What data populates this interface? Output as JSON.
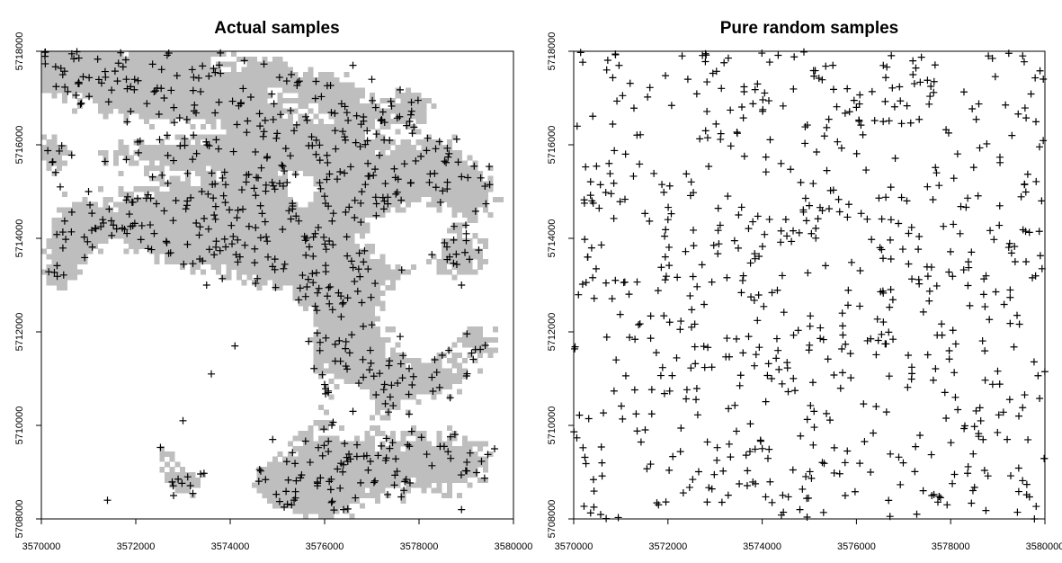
{
  "chart_data": [
    {
      "type": "scatter",
      "title": "Actual samples",
      "xlabel": "",
      "ylabel": "",
      "xlim": [
        3570000,
        3580000
      ],
      "ylim": [
        5708000,
        5718000
      ],
      "x_ticks": [
        "3570000",
        "3572000",
        "3574000",
        "3576000",
        "3578000",
        "3580000"
      ],
      "y_ticks": [
        "5708000",
        "5710000",
        "5712000",
        "5714000",
        "5716000",
        "5718000"
      ],
      "marker": "+",
      "background": "grey raster mask (sampled landscape)",
      "grid": false,
      "n_points_approx": 700,
      "sample_seed": 7,
      "points": [
        [
          3571400,
          5708400
        ],
        [
          3572800,
          5708500
        ],
        [
          3575300,
          5708300
        ],
        [
          3576400,
          5708200
        ],
        [
          3578900,
          5708200
        ],
        [
          3573100,
          5708900
        ],
        [
          3577700,
          5708800
        ],
        [
          3579600,
          5709500
        ],
        [
          3574900,
          5709700
        ],
        [
          3573000,
          5710100
        ],
        [
          3576600,
          5710300
        ],
        [
          3573600,
          5711100
        ],
        [
          3574100,
          5711700
        ],
        [
          3575900,
          5711600
        ],
        [
          3577600,
          5711900
        ],
        [
          3576100,
          5712600
        ],
        [
          3573500,
          5713000
        ],
        [
          3574800,
          5713600
        ],
        [
          3571300,
          5714400
        ],
        [
          3573400,
          5715000
        ],
        [
          3576000,
          5714900
        ],
        [
          3577500,
          5715300
        ],
        [
          3578600,
          5715200
        ],
        [
          3570400,
          5715100
        ],
        [
          3571000,
          5715000
        ],
        [
          3576900,
          5716300
        ],
        [
          3575600,
          5716600
        ],
        [
          3572600,
          5717000
        ],
        [
          3577000,
          5717400
        ],
        [
          3576600,
          5717700
        ],
        [
          3571800,
          5717400
        ],
        [
          3579000,
          5714100
        ],
        [
          3578900,
          5713000
        ],
        [
          3577800,
          5716500
        ],
        [
          3574300,
          5717800
        ]
      ]
    },
    {
      "type": "scatter",
      "title": "Pure random samples",
      "xlabel": "",
      "ylabel": "",
      "xlim": [
        3570000,
        3580000
      ],
      "ylim": [
        5708000,
        5718000
      ],
      "x_ticks": [
        "3570000",
        "3572000",
        "3574000",
        "3576000",
        "3578000",
        "3580000"
      ],
      "y_ticks": [
        "5708000",
        "5710000",
        "5712000",
        "5714000",
        "5716000",
        "5718000"
      ],
      "marker": "+",
      "grid": false,
      "n_points_approx": 700,
      "sample_seed": 11,
      "points": [
        [
          3570600,
          5709200
        ],
        [
          3571800,
          5708300
        ],
        [
          3573300,
          5709600
        ],
        [
          3574800,
          5708200
        ],
        [
          3576300,
          5709000
        ],
        [
          3577600,
          5708500
        ],
        [
          3579200,
          5709700
        ],
        [
          3570900,
          5711400
        ],
        [
          3572500,
          5712100
        ],
        [
          3574200,
          5711000
        ],
        [
          3575700,
          5712400
        ],
        [
          3577100,
          5711500
        ],
        [
          3578700,
          5712800
        ],
        [
          3570300,
          5713600
        ],
        [
          3572000,
          5714400
        ],
        [
          3573600,
          5713200
        ],
        [
          3575000,
          5714700
        ],
        [
          3576500,
          5713800
        ],
        [
          3578200,
          5714100
        ],
        [
          3579600,
          5713500
        ],
        [
          3571100,
          5715800
        ],
        [
          3572800,
          5716300
        ],
        [
          3574400,
          5715600
        ],
        [
          3576000,
          5716800
        ],
        [
          3577700,
          5715400
        ],
        [
          3579300,
          5716200
        ],
        [
          3570700,
          5717600
        ],
        [
          3572300,
          5717900
        ],
        [
          3573900,
          5717300
        ],
        [
          3575500,
          5717700
        ],
        [
          3577200,
          5717500
        ],
        [
          3578800,
          5717900
        ],
        [
          3575100,
          5710300
        ],
        [
          3573500,
          5714500
        ],
        [
          3578100,
          5710600
        ]
      ]
    }
  ]
}
